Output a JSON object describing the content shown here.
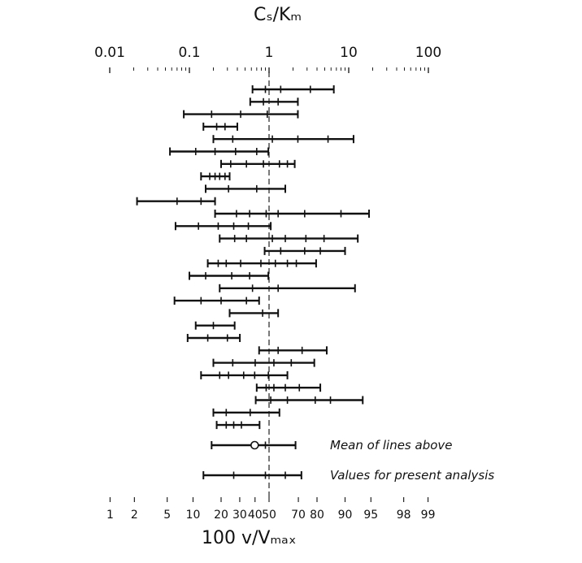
{
  "chart_data": {
    "type": "interval-plot",
    "top_axis": {
      "label": "Cₛ/Kₘ",
      "scale": "log",
      "range": [
        0.01,
        100
      ],
      "tick_labels": [
        {
          "value": 0.01,
          "label": "0.01"
        },
        {
          "value": 0.1,
          "label": "0.1"
        },
        {
          "value": 1,
          "label": "1"
        },
        {
          "value": 10,
          "label": "10"
        },
        {
          "value": 100,
          "label": "100"
        }
      ]
    },
    "bottom_axis": {
      "label": "100 v/Vₘₐₓ",
      "tick_labels": [
        {
          "value": 1,
          "label": "1"
        },
        {
          "value": 2,
          "label": "2"
        },
        {
          "value": 5,
          "label": "5"
        },
        {
          "value": 10,
          "label": "10"
        },
        {
          "value": 20,
          "label": "20"
        },
        {
          "value": 30,
          "label": "30"
        },
        {
          "value": 40,
          "label": "40"
        },
        {
          "value": 50,
          "label": "50"
        },
        {
          "value": 70,
          "label": "70"
        },
        {
          "value": 80,
          "label": "80"
        },
        {
          "value": 90,
          "label": "90"
        },
        {
          "value": 95,
          "label": "95"
        },
        {
          "value": 98,
          "label": "98"
        },
        {
          "value": 99,
          "label": "99"
        }
      ]
    },
    "reference_line": {
      "x": 1,
      "style": "dashed"
    },
    "series": [
      {
        "min": 0.62,
        "max": 6.5,
        "ticks": [
          0.9,
          1.4,
          3.3
        ]
      },
      {
        "min": 0.58,
        "max": 2.3,
        "ticks": [
          0.85,
          1.3
        ]
      },
      {
        "min": 0.085,
        "max": 2.3,
        "ticks": [
          0.19,
          0.44,
          0.95
        ]
      },
      {
        "min": 0.15,
        "max": 0.4,
        "ticks": [
          0.22,
          0.28
        ]
      },
      {
        "min": 0.2,
        "max": 11.5,
        "ticks": [
          0.35,
          1.1,
          2.3,
          5.5
        ]
      },
      {
        "min": 0.057,
        "max": 0.98,
        "ticks": [
          0.12,
          0.21,
          0.38,
          0.7
        ]
      },
      {
        "min": 0.25,
        "max": 2.1,
        "ticks": [
          0.33,
          0.52,
          0.85,
          1.35,
          1.7
        ]
      },
      {
        "min": 0.14,
        "max": 0.32,
        "ticks": [
          0.18,
          0.21,
          0.24,
          0.28
        ]
      },
      {
        "min": 0.16,
        "max": 1.6,
        "ticks": [
          0.31,
          0.7
        ]
      },
      {
        "min": 0.022,
        "max": 0.21,
        "ticks": [
          0.07,
          0.14
        ]
      },
      {
        "min": 0.21,
        "max": 18,
        "ticks": [
          0.39,
          0.57,
          0.92,
          1.3,
          2.8,
          8
        ]
      },
      {
        "min": 0.067,
        "max": 1.05,
        "ticks": [
          0.13,
          0.23,
          0.36,
          0.55
        ]
      },
      {
        "min": 0.24,
        "max": 13,
        "ticks": [
          0.37,
          0.52,
          1.1,
          1.6,
          2.9,
          4.9
        ]
      },
      {
        "min": 0.88,
        "max": 9,
        "ticks": [
          1.4,
          2.8,
          4.4
        ]
      },
      {
        "min": 0.17,
        "max": 3.9,
        "ticks": [
          0.23,
          0.29,
          0.44,
          0.79,
          1.2,
          1.7,
          2.2
        ]
      },
      {
        "min": 0.1,
        "max": 0.98,
        "ticks": [
          0.16,
          0.34,
          0.57
        ]
      },
      {
        "min": 0.24,
        "max": 12,
        "ticks": [
          0.62,
          1.3
        ]
      },
      {
        "min": 0.065,
        "max": 0.75,
        "ticks": [
          0.14,
          0.25,
          0.52
        ]
      },
      {
        "min": 0.32,
        "max": 1.3,
        "ticks": [
          0.83
        ]
      },
      {
        "min": 0.12,
        "max": 0.37,
        "ticks": [
          0.2
        ]
      },
      {
        "min": 0.095,
        "max": 0.43,
        "ticks": [
          0.17,
          0.3
        ]
      },
      {
        "min": 0.75,
        "max": 5.3,
        "ticks": [
          1.3,
          2.6
        ]
      },
      {
        "min": 0.2,
        "max": 3.7,
        "ticks": [
          0.35,
          0.67,
          1.15,
          1.9
        ]
      },
      {
        "min": 0.14,
        "max": 1.7,
        "ticks": [
          0.24,
          0.31,
          0.48,
          0.66,
          0.98
        ]
      },
      {
        "min": 0.7,
        "max": 4.4,
        "ticks": [
          0.92,
          1.15,
          1.6,
          2.4
        ]
      },
      {
        "min": 0.68,
        "max": 15,
        "ticks": [
          1.05,
          1.7,
          3.8,
          5.9
        ]
      },
      {
        "min": 0.2,
        "max": 1.35,
        "ticks": [
          0.29,
          0.58
        ]
      },
      {
        "min": 0.22,
        "max": 0.76,
        "ticks": [
          0.29,
          0.36,
          0.45
        ]
      }
    ],
    "mean_line": {
      "label": "Mean of lines above",
      "min": 0.19,
      "max": 2.15,
      "center": 0.66,
      "center_marker": "open-circle",
      "ticks": [
        0.9
      ]
    },
    "present_analysis": {
      "label": "Values for present analysis",
      "min": 0.15,
      "max": 2.55,
      "ticks": [
        0.36,
        0.9,
        1.6
      ]
    }
  }
}
